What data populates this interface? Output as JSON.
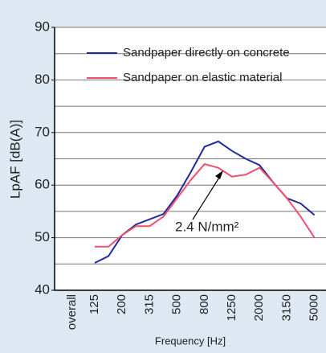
{
  "chart_data": {
    "type": "line",
    "x_label": "Frequency [Hz]",
    "y_label": "LpAF [dB(A)]",
    "categories": [
      "overall",
      "125",
      null,
      "200",
      null,
      "315",
      null,
      "500",
      null,
      "800",
      null,
      "1250",
      null,
      "2000",
      null,
      "3150",
      null,
      "5000"
    ],
    "series": [
      {
        "name": "Sandpaper directly on concrete",
        "color": "#1f2a9c",
        "values": [
          null,
          45.2,
          46.5,
          50.5,
          52.5,
          53.5,
          54.5,
          58,
          62.5,
          67.3,
          68.3,
          66.5,
          65,
          63.8,
          60.5,
          57.5,
          56.5,
          54.3
        ]
      },
      {
        "name": "Sandpaper on elastic material",
        "color": "#f0506e",
        "values": [
          null,
          48.3,
          48.3,
          50.5,
          52.2,
          52.2,
          54,
          57.5,
          61,
          64,
          63.3,
          61.6,
          62,
          63.3,
          60.5,
          57.5,
          54,
          50
        ]
      }
    ],
    "annotation": "2.4 N/mm²",
    "ylim": [
      40,
      90
    ],
    "yticks": [
      40,
      50,
      60,
      70,
      80,
      90
    ],
    "yminor": [
      45,
      55,
      65,
      75,
      85
    ],
    "grid": true,
    "legend": "top-left"
  }
}
